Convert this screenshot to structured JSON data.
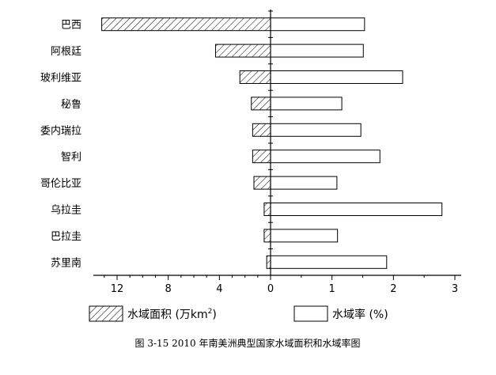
{
  "chart_data": {
    "type": "bar",
    "subtype": "back-to-back horizontal bar (butterfly)",
    "categories": [
      "巴西",
      "阿根廷",
      "玻利维亚",
      "秘鲁",
      "委内瑞拉",
      "智利",
      "哥伦比亚",
      "乌拉圭",
      "巴拉圭",
      "苏里南"
    ],
    "series": [
      {
        "name": "水域面积 (万km²)",
        "side": "left",
        "fill": "hatched",
        "values": [
          13.2,
          4.3,
          2.4,
          1.5,
          1.4,
          1.4,
          1.3,
          0.5,
          0.5,
          0.3
        ]
      },
      {
        "name": "水域率 (%)",
        "side": "right",
        "fill": "white",
        "values": [
          1.53,
          1.51,
          2.15,
          1.16,
          1.47,
          1.78,
          1.08,
          2.79,
          1.09,
          1.89
        ]
      }
    ],
    "left_axis": {
      "ticks": [
        "12",
        "8",
        "4",
        "0"
      ],
      "range": [
        0,
        13.5
      ]
    },
    "right_axis": {
      "ticks": [
        "1",
        "2",
        "3"
      ],
      "range": [
        0,
        3
      ]
    },
    "zero_label": "0",
    "legend_position": "bottom",
    "legend": {
      "left": {
        "text": "水域面积 (万km",
        "sup": "2",
        "close": ")"
      },
      "right": {
        "text": "水域率 (%)"
      }
    },
    "caption": "图 3-15  2010 年南美洲典型国家水域面积和水域率图",
    "grid": false,
    "colors": {
      "stroke": "#000000",
      "background": "#ffffff",
      "hatch": "#000000"
    }
  }
}
